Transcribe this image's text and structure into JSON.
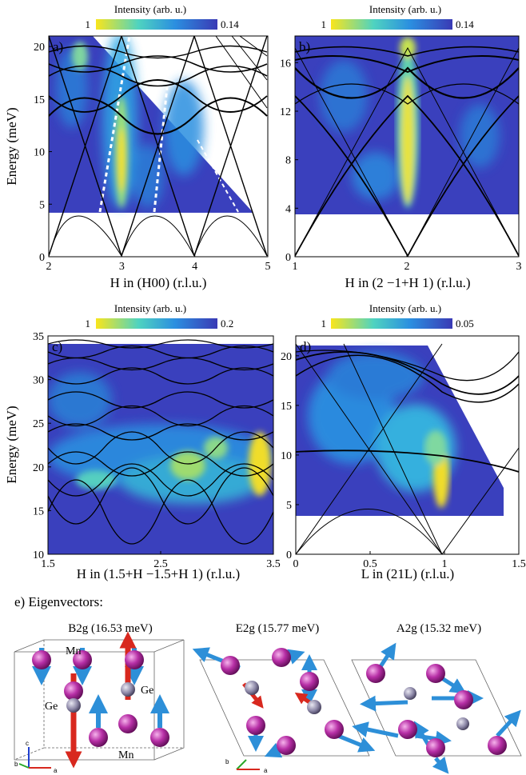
{
  "colormap": {
    "low_color": "#f7e21b",
    "mid_color": "#2fb1e3",
    "high_color": "#3a3ab5",
    "background": "#3a3fb8"
  },
  "eigen_title": "e) Eigenvectors:",
  "chart_data": [
    {
      "type": "heatmap",
      "panel": "a)",
      "colorbar": {
        "title": "Intensity (arb. u.)",
        "min_label": "1",
        "max_label": "0.14"
      },
      "xlabel": "H in (H00) (r.l.u.)",
      "ylabel": "Energy (meV)",
      "xlim": [
        2,
        5
      ],
      "ylim": [
        0,
        21
      ],
      "xticks": [
        "2",
        "3",
        "4",
        "5"
      ],
      "yticks": [
        "0",
        "5",
        "10",
        "15",
        "20"
      ],
      "data_coverage": {
        "e_min": 4.2,
        "edge": [
          [
            2.0,
            20.5
          ],
          [
            2.6,
            20.5
          ],
          [
            4.8,
            4.2
          ]
        ]
      },
      "intensity_ridge": {
        "x": 3.0,
        "e_range": [
          4.5,
          20.5
        ]
      },
      "spurion_lines": [
        [
          [
            2.75,
            4.5
          ],
          [
            3.15,
            21
          ]
        ],
        [
          [
            3.5,
            4.5
          ],
          [
            3.75,
            20.5
          ]
        ],
        [
          [
            4.1,
            10
          ],
          [
            4.6,
            4.5
          ]
        ]
      ],
      "dispersion_curves": "calculated spin-wave branches"
    },
    {
      "type": "heatmap",
      "panel": "b)",
      "colorbar": {
        "title": "Intensity (arb. u.)",
        "min_label": "1",
        "max_label": "0.14"
      },
      "xlabel": "H in (2 −1+H 1) (r.l.u.)",
      "ylabel": "",
      "xlim": [
        1,
        3
      ],
      "ylim": [
        0,
        18.2
      ],
      "xticks": [
        "1",
        "2",
        "3"
      ],
      "yticks": [
        "0",
        "4",
        "8",
        "12",
        "16"
      ],
      "data_coverage": {
        "e_min": 3.6,
        "edge": [
          [
            1.0,
            18
          ],
          [
            3.0,
            18
          ]
        ]
      },
      "intensity_ridge": {
        "x": 2.0,
        "e_range": [
          3.8,
          18
        ]
      },
      "dispersion_curves": "calculated spin-wave branches"
    },
    {
      "type": "heatmap",
      "panel": "c)",
      "colorbar": {
        "title": "Intensity (arb. u.)",
        "min_label": "1",
        "max_label": "0.2"
      },
      "xlabel": "H in (1.5+H −1.5+H 1) (r.l.u.)",
      "ylabel": "Energy (meV)",
      "xlim": [
        1.5,
        3.5
      ],
      "ylim": [
        10,
        35
      ],
      "xticks": [
        "1.5",
        "2.5",
        "3.5"
      ],
      "yticks": [
        "10",
        "15",
        "20",
        "25",
        "30",
        "35"
      ],
      "data_coverage": {
        "e_min": 10,
        "edge": [
          [
            1.5,
            33.5
          ],
          [
            3.5,
            33.5
          ]
        ]
      },
      "intensity_ridge": {
        "x": 3.45,
        "e_range": [
          16,
          24
        ]
      },
      "dispersion_curves": "calculated spin-wave branches"
    },
    {
      "type": "heatmap",
      "panel": "d)",
      "colorbar": {
        "title": "Intensity (arb. u.)",
        "min_label": "1",
        "max_label": "0.05"
      },
      "xlabel": "L in (21L) (r.l.u.)",
      "ylabel": "",
      "xlim": [
        0,
        1.5
      ],
      "ylim": [
        0,
        22
      ],
      "xticks": [
        "0",
        "0.5",
        "1",
        "1.5"
      ],
      "yticks": [
        "0",
        "5",
        "10",
        "15",
        "20"
      ],
      "data_coverage": {
        "e_min": 4.0,
        "edge": [
          [
            0.0,
            21
          ],
          [
            0.9,
            21
          ],
          [
            1.4,
            4.0
          ]
        ]
      },
      "intensity_ridge": {
        "x": 1.0,
        "e_range": [
          5,
          15
        ]
      },
      "dispersion_curves": "calculated spin-wave branches"
    }
  ],
  "eigenvectors": [
    {
      "title": "B2g (16.53 meV)",
      "labels": {
        "mn_top": "Mn",
        "ge_right": "Ge",
        "ge_left": "Ge",
        "mn_bottom": "Mn"
      },
      "axes": [
        "c",
        "b",
        "a"
      ]
    },
    {
      "title": "E2g (15.77 meV)",
      "axes": [
        "b",
        "a"
      ]
    },
    {
      "title": "A2g (15.32 meV)"
    }
  ]
}
